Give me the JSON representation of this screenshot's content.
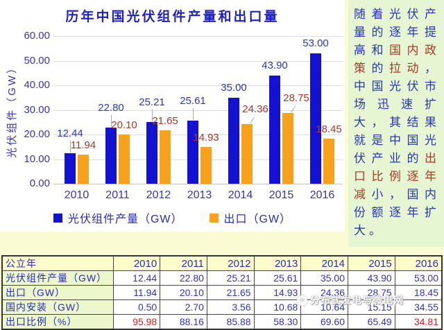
{
  "page": {
    "background": "#fbfbd3"
  },
  "chart_data": {
    "type": "bar",
    "title": "历年中国光伏组件产量和出口量",
    "categories": [
      "2010",
      "2011",
      "2012",
      "2013",
      "2014",
      "2015",
      "2016"
    ],
    "series": [
      {
        "name": "光伏组件产量（GW）",
        "color": "#1212d0",
        "label_color": "#2b35b8",
        "values": [
          12.44,
          22.8,
          25.21,
          25.61,
          35.0,
          43.9,
          53.0
        ]
      },
      {
        "name": "出口（GW）",
        "color": "#f7a11c",
        "label_color": "#a5392b",
        "values": [
          11.94,
          20.1,
          21.65,
          14.93,
          24.36,
          28.75,
          18.45
        ]
      }
    ],
    "xlabel": "",
    "ylabel": "光伏组件（GW）",
    "ylim": [
      0,
      60
    ],
    "ytick_step": 10,
    "ytick_format_decimals": 2,
    "grid": true,
    "legend_position": "bottom"
  },
  "side_panel": {
    "background": "#e7f6d2",
    "segments": [
      {
        "text": "随着光伏产量的逐年提高和",
        "color": "blue"
      },
      {
        "text": "国内政策",
        "color": "red"
      },
      {
        "text": "的",
        "color": "blue"
      },
      {
        "text": "拉动",
        "color": "red"
      },
      {
        "text": "，中国光伏市场迅速扩大，其结果就是中国光伏产业的",
        "color": "blue"
      },
      {
        "text": "出口比例逐年减",
        "color": "red"
      },
      {
        "text": "小，国内份额逐年扩大。",
        "color": "blue"
      }
    ]
  },
  "table": {
    "header": {
      "label": "公立年",
      "values": [
        "2010",
        "2011",
        "2012",
        "2013",
        "2014",
        "2015",
        "2016"
      ]
    },
    "rows": [
      {
        "label": "光伏组件产量（GW）",
        "values": [
          "12.44",
          "22.80",
          "25.21",
          "25.61",
          "35.00",
          "43.90",
          "53.00"
        ],
        "red_indices": []
      },
      {
        "label": "出口（GW）",
        "values": [
          "11.94",
          "20.10",
          "21.65",
          "14.93",
          "24.36",
          "28.75",
          "18.45"
        ],
        "red_indices": []
      },
      {
        "label": "国内安装（GW）",
        "values": [
          "0.50",
          "2.70",
          "3.56",
          "10.68",
          "10.64",
          "15.15",
          "34.55"
        ],
        "red_indices": [],
        "watermarked": true
      },
      {
        "label": "出口比例（%）",
        "values": [
          "95.98",
          "88.16",
          "85.88",
          "58.30",
          "69.60",
          "65.49",
          "34.81"
        ],
        "red_indices": [
          0,
          6
        ]
      }
    ]
  },
  "watermark": {
    "text": "分布式发电与微电网",
    "logo": "circle-logo"
  }
}
